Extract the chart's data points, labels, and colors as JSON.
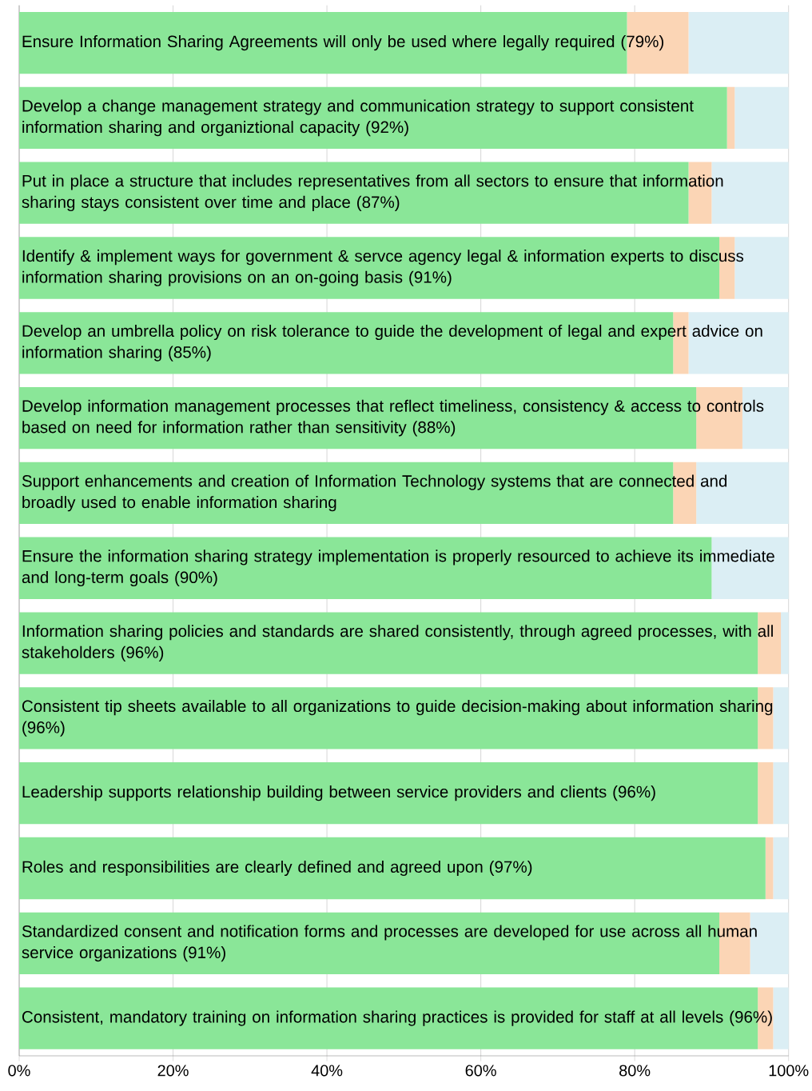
{
  "chart_data": {
    "type": "bar",
    "orientation": "horizontal",
    "stacked": true,
    "grid": "x",
    "categories": [
      "Ensure Information Sharing Agreements will only be used where legally required (79%)",
      "Develop a change management strategy and communication strategy to support consistent information sharing and organiztional capacity (92%)",
      "Put in place a structure that includes representatives from all sectors to ensure that information sharing stays consistent over time and place (87%)",
      "Identify & implement ways for government & servce agency legal & information experts to discuss information sharing provisions on an on-going basis (91%)",
      "Develop an umbrella policy on risk tolerance to guide the development of legal and expert advice on information sharing (85%)",
      "Develop information management processes that reflect timeliness, consistency & access to controls based on need for information rather than sensitivity (88%)",
      "Support enhancements and creation of Information Technology systems that are connected and broadly used to enable information sharing",
      "Ensure the information sharing strategy implementation is properly resourced to achieve its immediate and long-term goals (90%)",
      "Information sharing policies and standards are shared consistently, through agreed processes, with all stakeholders (96%)",
      "Consistent tip sheets available to all organizations to guide decision-making about information sharing (96%)",
      "Leadership supports relationship building between service providers and clients (96%)",
      "Roles and responsibilities are clearly defined and agreed upon (97%)",
      "Standardized consent and notification forms and processes are developed for use across all human service organizations (91%)",
      "Consistent, mandatory training on information sharing practices is provided for staff at all levels (96%)"
    ],
    "series": [
      {
        "color": "#8ae698",
        "values": [
          79,
          92,
          87,
          91,
          85,
          88,
          85,
          90,
          96,
          96,
          96,
          97,
          91,
          96
        ]
      },
      {
        "color": "#fbd5b5",
        "values": [
          8,
          1,
          3,
          2,
          2,
          6,
          3,
          0,
          3,
          2,
          2,
          1,
          4,
          2
        ]
      },
      {
        "color": "#dbeef4",
        "values": [
          13,
          7,
          10,
          7,
          13,
          6,
          12,
          10,
          1,
          2,
          2,
          2,
          5,
          2
        ]
      }
    ],
    "xlim": [
      0,
      100
    ],
    "xticks": [
      {
        "value": 0,
        "label": "0%"
      },
      {
        "value": 20,
        "label": "20%"
      },
      {
        "value": 40,
        "label": "40%"
      },
      {
        "value": 60,
        "label": "60%"
      },
      {
        "value": 80,
        "label": "80%"
      },
      {
        "value": 100,
        "label": "100%"
      }
    ]
  }
}
